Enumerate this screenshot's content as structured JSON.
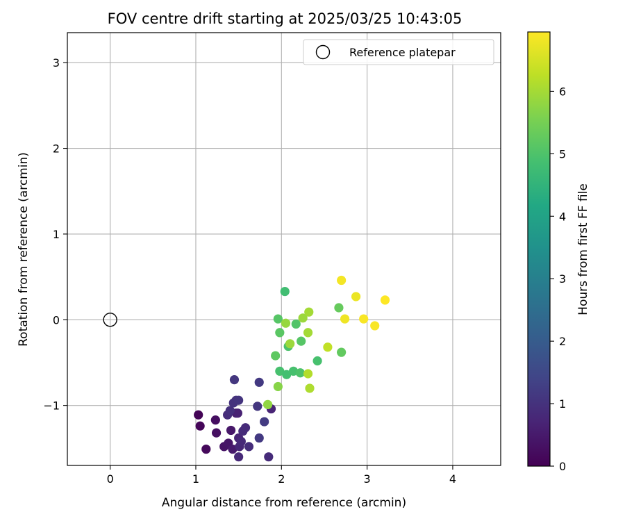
{
  "chart_data": {
    "type": "scatter",
    "title": "FOV centre drift starting at 2025/03/25 10:43:05",
    "xlabel": "Angular distance from reference (arcmin)",
    "ylabel": "Rotation from reference (arcmin)",
    "xlim": [
      -0.5,
      4.56
    ],
    "ylim": [
      -1.7,
      3.35
    ],
    "xticks": [
      0,
      1,
      2,
      3,
      4
    ],
    "yticks": [
      -1,
      0,
      1,
      2,
      3
    ],
    "xtick_labels": [
      "0",
      "1",
      "2",
      "3",
      "4"
    ],
    "ytick_labels": [
      "−1",
      "0",
      "1",
      "2",
      "3"
    ],
    "grid": true,
    "legend": {
      "position": "top-right",
      "label": "Reference platepar"
    },
    "reference_point": {
      "x": 0,
      "y": 0
    },
    "colorbar": {
      "label": "Hours from first FF file",
      "range": [
        0,
        6.95
      ],
      "ticks": [
        0,
        1,
        2,
        3,
        4,
        5,
        6
      ],
      "tick_labels": [
        "0",
        "1",
        "2",
        "3",
        "4",
        "5",
        "6"
      ],
      "colormap": "viridis"
    },
    "points": [
      {
        "x": 1.03,
        "y": -1.11,
        "h": 0.05
      },
      {
        "x": 1.05,
        "y": -1.24,
        "h": 0.1
      },
      {
        "x": 1.12,
        "y": -1.51,
        "h": 0.15
      },
      {
        "x": 1.23,
        "y": -1.17,
        "h": 0.25
      },
      {
        "x": 1.24,
        "y": -1.32,
        "h": 0.3
      },
      {
        "x": 1.33,
        "y": -1.48,
        "h": 0.35
      },
      {
        "x": 1.38,
        "y": -1.44,
        "h": 0.4
      },
      {
        "x": 1.41,
        "y": -1.29,
        "h": 0.45
      },
      {
        "x": 1.43,
        "y": -1.51,
        "h": 0.5
      },
      {
        "x": 1.47,
        "y": -1.09,
        "h": 0.6
      },
      {
        "x": 1.49,
        "y": -1.09,
        "h": 0.65
      },
      {
        "x": 1.5,
        "y": -1.38,
        "h": 0.7
      },
      {
        "x": 1.51,
        "y": -1.48,
        "h": 0.75
      },
      {
        "x": 1.5,
        "y": -1.6,
        "h": 0.8
      },
      {
        "x": 1.53,
        "y": -1.42,
        "h": 0.8
      },
      {
        "x": 1.55,
        "y": -1.3,
        "h": 0.85
      },
      {
        "x": 1.58,
        "y": -1.26,
        "h": 0.85
      },
      {
        "x": 1.62,
        "y": -1.48,
        "h": 0.9
      },
      {
        "x": 1.37,
        "y": -1.11,
        "h": 0.9
      },
      {
        "x": 1.4,
        "y": -1.06,
        "h": 0.95
      },
      {
        "x": 1.44,
        "y": -0.97,
        "h": 1.0
      },
      {
        "x": 1.47,
        "y": -0.94,
        "h": 1.0
      },
      {
        "x": 1.5,
        "y": -0.94,
        "h": 1.05
      },
      {
        "x": 1.45,
        "y": -0.7,
        "h": 1.1
      },
      {
        "x": 1.72,
        "y": -1.01,
        "h": 1.1
      },
      {
        "x": 1.74,
        "y": -1.38,
        "h": 1.15
      },
      {
        "x": 1.74,
        "y": -0.73,
        "h": 1.15
      },
      {
        "x": 1.8,
        "y": -1.19,
        "h": 1.2
      },
      {
        "x": 1.85,
        "y": -1.6,
        "h": 0.85
      },
      {
        "x": 1.88,
        "y": -1.04,
        "h": 0.7
      },
      {
        "x": 1.93,
        "y": -0.42,
        "h": 5.2
      },
      {
        "x": 1.96,
        "y": 0.01,
        "h": 5.1
      },
      {
        "x": 1.98,
        "y": -0.15,
        "h": 5.15
      },
      {
        "x": 1.98,
        "y": -0.6,
        "h": 4.9
      },
      {
        "x": 2.04,
        "y": 0.33,
        "h": 4.8
      },
      {
        "x": 2.06,
        "y": -0.64,
        "h": 4.85
      },
      {
        "x": 2.08,
        "y": -0.31,
        "h": 4.95
      },
      {
        "x": 2.14,
        "y": -0.6,
        "h": 4.9
      },
      {
        "x": 2.17,
        "y": -0.05,
        "h": 5.05
      },
      {
        "x": 2.22,
        "y": -0.62,
        "h": 5.0
      },
      {
        "x": 2.23,
        "y": -0.25,
        "h": 5.1
      },
      {
        "x": 2.42,
        "y": -0.48,
        "h": 4.9
      },
      {
        "x": 2.67,
        "y": 0.14,
        "h": 5.3
      },
      {
        "x": 2.7,
        "y": -0.38,
        "h": 5.25
      },
      {
        "x": 1.84,
        "y": -0.99,
        "h": 5.8
      },
      {
        "x": 1.96,
        "y": -0.78,
        "h": 5.7
      },
      {
        "x": 2.05,
        "y": -0.04,
        "h": 5.85
      },
      {
        "x": 2.1,
        "y": -0.28,
        "h": 5.9
      },
      {
        "x": 2.25,
        "y": 0.02,
        "h": 5.9
      },
      {
        "x": 2.31,
        "y": -0.15,
        "h": 6.0
      },
      {
        "x": 2.32,
        "y": 0.09,
        "h": 6.0
      },
      {
        "x": 2.31,
        "y": -0.63,
        "h": 6.15
      },
      {
        "x": 2.33,
        "y": -0.8,
        "h": 6.1
      },
      {
        "x": 2.54,
        "y": -0.32,
        "h": 6.3
      },
      {
        "x": 2.7,
        "y": 0.46,
        "h": 6.85
      },
      {
        "x": 2.74,
        "y": 0.01,
        "h": 6.8
      },
      {
        "x": 2.87,
        "y": 0.27,
        "h": 6.75
      },
      {
        "x": 2.96,
        "y": 0.01,
        "h": 6.9
      },
      {
        "x": 3.09,
        "y": -0.07,
        "h": 6.9
      },
      {
        "x": 3.21,
        "y": 0.23,
        "h": 6.95
      }
    ]
  }
}
